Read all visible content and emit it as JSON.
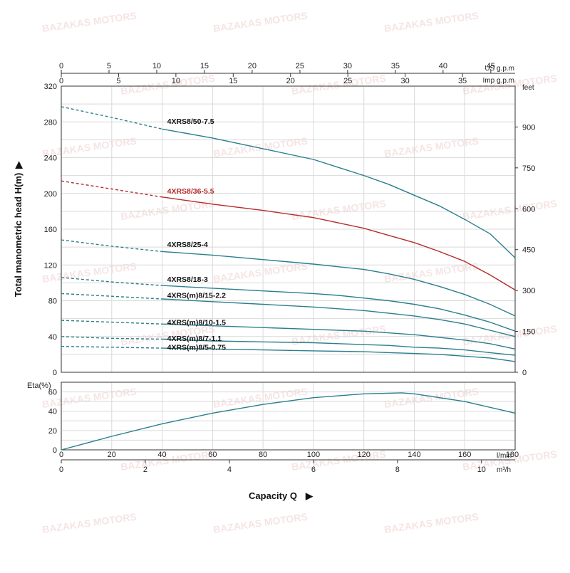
{
  "colors": {
    "teal": "#2a7f8e",
    "red": "#b52b2b",
    "axis": "#333333",
    "grid": "#d9d9d9"
  },
  "watermark": "BAZAKAS MOTORS",
  "chart_data": [
    {
      "type": "line",
      "title": "",
      "ylabel": "Total manometric head H(m)",
      "y2label": "feet",
      "x_units": {
        "primary": "l/min",
        "second": "m³/h",
        "top1": "US g.p.m",
        "top2": "Imp g.p.m"
      },
      "xlim": [
        0,
        180
      ],
      "ylim": [
        0,
        320
      ],
      "grid": true,
      "x_ticks": [
        "0",
        "20",
        "40",
        "60",
        "80",
        "100",
        "120",
        "140",
        "160",
        "180"
      ],
      "y_ticks": [
        "0",
        "40",
        "80",
        "120",
        "160",
        "200",
        "240",
        "280",
        "320"
      ],
      "y2_ticks": [
        "0",
        "150",
        "300",
        "450",
        "600",
        "750",
        "900"
      ],
      "y2_tick_values_m": [
        0,
        45.72,
        91.44,
        137.16,
        182.88,
        228.6,
        274.32
      ],
      "m3h_ticks": [
        "0",
        "2",
        "4",
        "6",
        "8",
        "10"
      ],
      "m3h_tick_values_lmin": [
        0,
        33.33,
        66.67,
        100,
        133.33,
        166.67
      ],
      "us_gpm_ticks": [
        "0",
        "5",
        "10",
        "15",
        "20",
        "25",
        "30",
        "35",
        "40",
        "45"
      ],
      "us_gpm_tick_values_lmin": [
        0,
        18.93,
        37.85,
        56.78,
        75.71,
        94.64,
        113.56,
        132.49,
        151.42,
        170.34
      ],
      "imp_gpm_ticks": [
        "0",
        "5",
        "10",
        "15",
        "20",
        "25",
        "30",
        "35"
      ],
      "imp_gpm_tick_values_lmin": [
        0,
        22.73,
        45.46,
        68.19,
        90.92,
        113.65,
        136.38,
        159.11
      ],
      "series": [
        {
          "name": "4XRS8/50-7.5",
          "color": "#2a7f8e",
          "dashed_until": 40,
          "label_at": [
            42,
            278
          ],
          "x": [
            0,
            20,
            40,
            60,
            80,
            100,
            110,
            120,
            130,
            140,
            150,
            160,
            170,
            180
          ],
          "y": [
            297,
            285,
            272,
            262,
            250,
            238,
            229,
            220,
            210,
            198,
            186,
            171,
            155,
            128
          ]
        },
        {
          "name": "4XRS8/36-5.5",
          "color": "#b52b2b",
          "dashed_until": 40,
          "label_at": [
            42,
            200
          ],
          "x": [
            0,
            20,
            40,
            60,
            80,
            100,
            110,
            120,
            130,
            140,
            150,
            160,
            170,
            180
          ],
          "y": [
            214,
            205,
            196,
            188,
            181,
            173,
            167,
            161,
            153,
            145,
            135,
            124,
            109,
            92
          ]
        },
        {
          "name": "4XRS8/25-4",
          "color": "#2a7f8e",
          "dashed_until": 40,
          "label_at": [
            42,
            140
          ],
          "x": [
            0,
            20,
            40,
            60,
            80,
            100,
            110,
            120,
            130,
            140,
            150,
            160,
            170,
            180
          ],
          "y": [
            148,
            141,
            135,
            131,
            126,
            121,
            118,
            115,
            110,
            104,
            96,
            87,
            76,
            63
          ]
        },
        {
          "name": "4XRS8/18-3",
          "color": "#2a7f8e",
          "dashed_until": 40,
          "label_at": [
            42,
            101
          ],
          "x": [
            0,
            20,
            40,
            60,
            80,
            100,
            110,
            120,
            130,
            140,
            150,
            160,
            170,
            180
          ],
          "y": [
            106,
            101,
            97,
            94,
            91,
            88,
            86,
            83,
            80,
            76,
            71,
            64,
            56,
            46
          ]
        },
        {
          "name": "4XRS(m)8/15-2.2",
          "color": "#2a7f8e",
          "dashed_until": 40,
          "label_at": [
            42,
            83
          ],
          "x": [
            0,
            20,
            40,
            60,
            80,
            100,
            110,
            120,
            130,
            140,
            150,
            160,
            170,
            180
          ],
          "y": [
            88,
            85,
            82,
            79,
            76,
            73,
            71,
            69,
            66,
            63,
            59,
            54,
            47,
            40
          ]
        },
        {
          "name": "4XRS(m)8/10-1.5",
          "color": "#2a7f8e",
          "dashed_until": 40,
          "label_at": [
            42,
            53
          ],
          "x": [
            0,
            20,
            40,
            60,
            80,
            100,
            110,
            120,
            130,
            140,
            150,
            160,
            170,
            180
          ],
          "y": [
            58,
            56,
            54,
            52,
            50,
            48,
            47,
            46,
            44,
            42,
            39,
            36,
            32,
            26
          ]
        },
        {
          "name": "4XRS(m)8/7-1.1",
          "color": "#2a7f8e",
          "dashed_until": 40,
          "label_at": [
            42,
            35
          ],
          "x": [
            0,
            20,
            40,
            60,
            80,
            100,
            110,
            120,
            130,
            140,
            150,
            160,
            170,
            180
          ],
          "y": [
            40,
            38,
            37,
            35,
            34,
            33,
            32,
            31,
            30,
            28,
            27,
            25,
            22,
            19
          ]
        },
        {
          "name": "4XRS(m)8/5-0.75",
          "color": "#2a7f8e",
          "dashed_until": 40,
          "label_at": [
            42,
            25
          ],
          "x": [
            0,
            20,
            40,
            60,
            80,
            100,
            110,
            120,
            130,
            140,
            150,
            160,
            170,
            180
          ],
          "y": [
            29,
            28,
            27,
            26,
            25,
            24,
            23.5,
            23,
            22,
            21,
            20,
            18,
            16,
            12
          ]
        }
      ]
    },
    {
      "type": "line",
      "ylabel": "Eta(%)",
      "xlabel": "Capacity Q",
      "xlim": [
        0,
        180
      ],
      "ylim": [
        0,
        70
      ],
      "grid": true,
      "y_ticks": [
        "0",
        "20",
        "40",
        "60"
      ],
      "x_ticks": [
        "0",
        "20",
        "40",
        "60",
        "80",
        "100",
        "120",
        "140",
        "160",
        "180"
      ],
      "series": [
        {
          "color": "#2a7f8e",
          "x": [
            0,
            20,
            40,
            60,
            80,
            100,
            120,
            135,
            140,
            160,
            180
          ],
          "y": [
            0,
            14,
            27,
            38,
            47,
            54,
            58,
            59,
            58,
            50,
            38
          ]
        }
      ]
    }
  ]
}
